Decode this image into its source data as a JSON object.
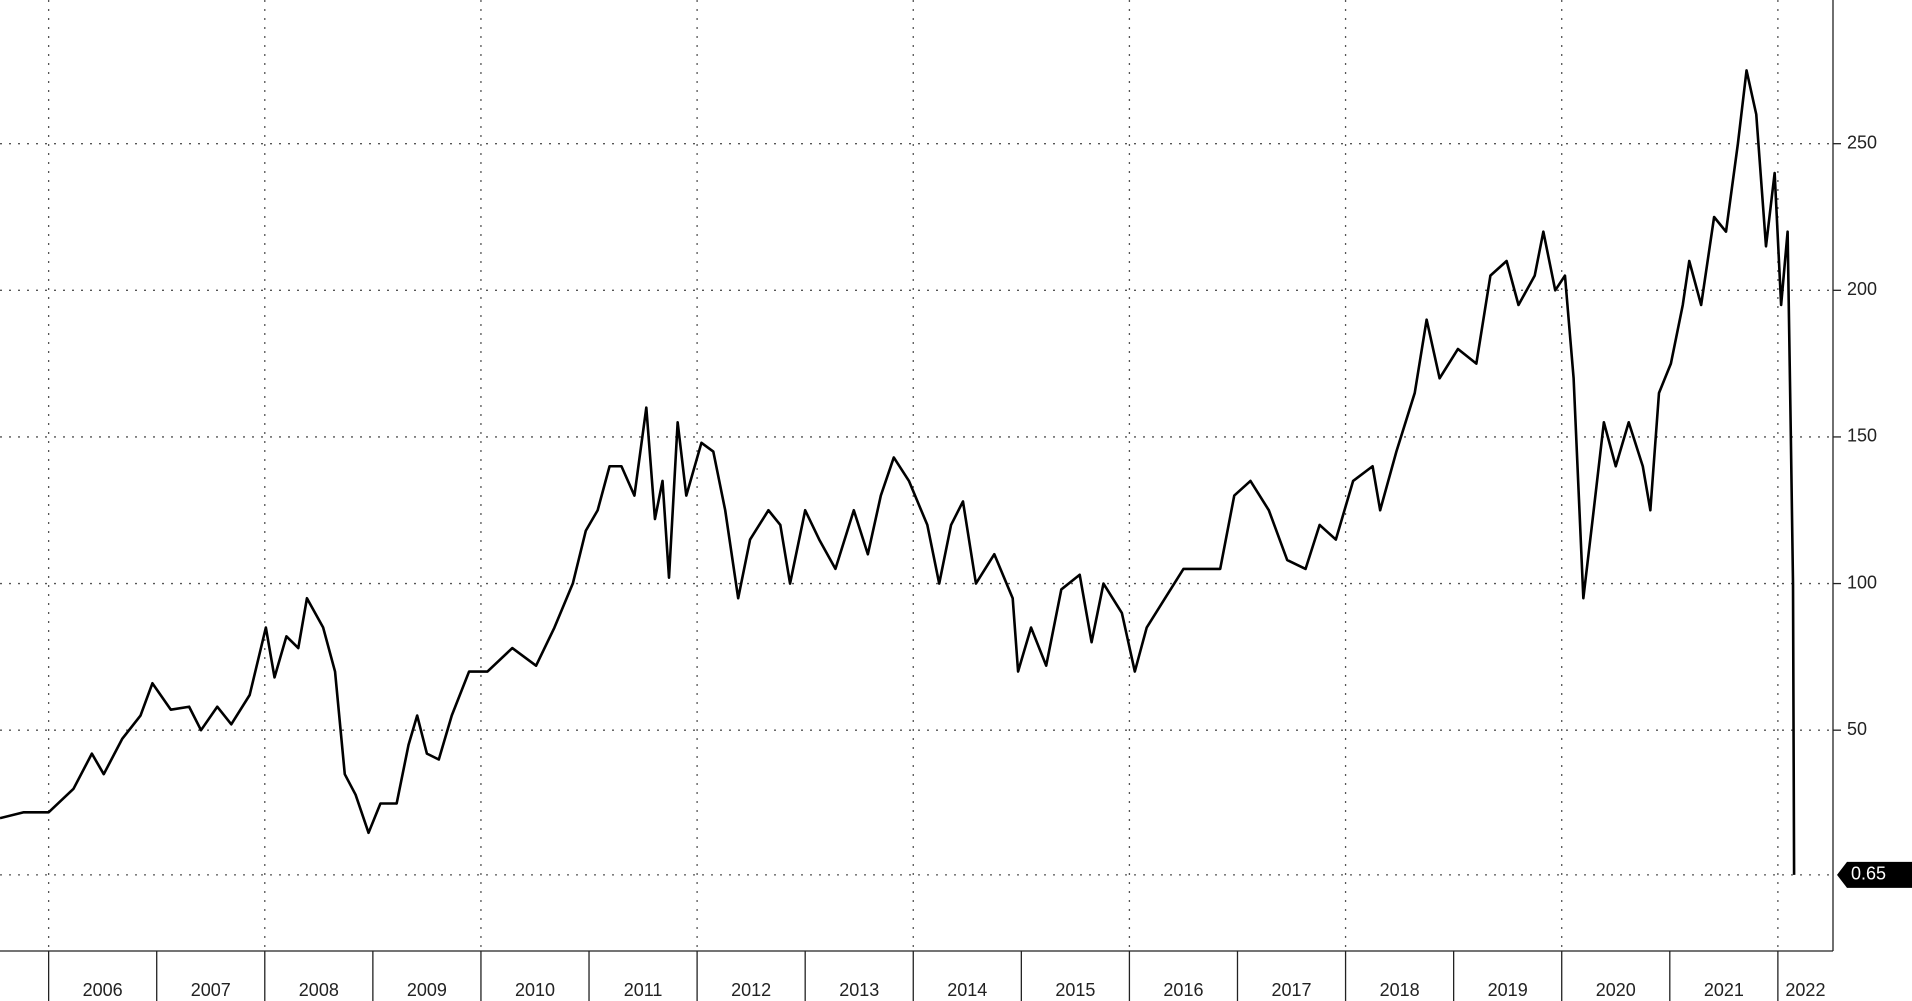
{
  "chart_data": {
    "type": "line",
    "x": [
      2005.55,
      2005.77,
      2006.0,
      2006.23,
      2006.4,
      2006.51,
      2006.68,
      2006.85,
      2006.96,
      2007.13,
      2007.3,
      2007.41,
      2007.56,
      2007.69,
      2007.86,
      2008.01,
      2008.09,
      2008.2,
      2008.31,
      2008.39,
      2008.54,
      2008.65,
      2008.74,
      2008.84,
      2008.96,
      2009.07,
      2009.22,
      2009.33,
      2009.41,
      2009.5,
      2009.61,
      2009.73,
      2009.89,
      2010.06,
      2010.29,
      2010.51,
      2010.68,
      2010.85,
      2010.97,
      2011.08,
      2011.19,
      2011.3,
      2011.42,
      2011.53,
      2011.61,
      2011.68,
      2011.74,
      2011.82,
      2011.9,
      2012.04,
      2012.15,
      2012.26,
      2012.38,
      2012.49,
      2012.66,
      2012.77,
      2012.86,
      2013.0,
      2013.13,
      2013.28,
      2013.45,
      2013.58,
      2013.7,
      2013.82,
      2013.96,
      2014.13,
      2014.24,
      2014.35,
      2014.46,
      2014.58,
      2014.75,
      2014.92,
      2014.97,
      2015.09,
      2015.23,
      2015.37,
      2015.54,
      2015.65,
      2015.76,
      2015.93,
      2016.05,
      2016.16,
      2016.33,
      2016.5,
      2016.67,
      2016.84,
      2016.97,
      2017.12,
      2017.29,
      2017.46,
      2017.63,
      2017.76,
      2017.91,
      2018.07,
      2018.25,
      2018.32,
      2018.47,
      2018.64,
      2018.75,
      2018.87,
      2019.04,
      2019.21,
      2019.34,
      2019.49,
      2019.6,
      2019.75,
      2019.83,
      2019.94,
      2020.03,
      2020.11,
      2020.2,
      2020.28,
      2020.39,
      2020.5,
      2020.62,
      2020.75,
      2020.82,
      2020.9,
      2021.01,
      2021.12,
      2021.18,
      2021.29,
      2021.41,
      2021.52,
      2021.63,
      2021.71,
      2021.8,
      2021.89,
      2021.97,
      2022.03,
      2022.09,
      2022.12,
      2022.14,
      2022.15
    ],
    "series": [
      {
        "color": "#000000",
        "values": [
          20,
          22,
          22,
          30,
          42,
          35,
          47,
          55,
          66,
          57,
          58,
          50,
          58,
          52,
          62,
          85,
          68,
          82,
          78,
          95,
          85,
          70,
          35,
          28,
          15,
          25,
          25,
          45,
          55,
          42,
          40,
          55,
          70,
          70,
          78,
          72,
          85,
          100,
          118,
          125,
          140,
          140,
          130,
          160,
          122,
          135,
          102,
          155,
          130,
          148,
          145,
          125,
          95,
          115,
          125,
          120,
          100,
          125,
          115,
          105,
          125,
          110,
          130,
          143,
          135,
          120,
          100,
          120,
          128,
          100,
          110,
          95,
          70,
          85,
          72,
          98,
          103,
          80,
          100,
          90,
          70,
          85,
          95,
          105,
          105,
          105,
          130,
          135,
          125,
          108,
          105,
          120,
          115,
          135,
          140,
          125,
          145,
          165,
          190,
          170,
          180,
          175,
          205,
          210,
          195,
          205,
          220,
          200,
          205,
          170,
          95,
          120,
          155,
          140,
          155,
          140,
          125,
          165,
          175,
          195,
          210,
          195,
          225,
          220,
          250,
          275,
          260,
          215,
          240,
          195,
          220,
          150,
          100,
          0.65
        ]
      }
    ],
    "xlim": [
      2005.55,
      2022.51
    ],
    "xticks": [
      2006,
      2007,
      2008,
      2009,
      2010,
      2011,
      2012,
      2013,
      2014,
      2015,
      2016,
      2017,
      2018,
      2019,
      2020,
      2021,
      2022
    ],
    "ylim": [
      -25.3,
      299
    ],
    "yticks": [
      50,
      100,
      150,
      200,
      250
    ],
    "grid": true
  }
}
